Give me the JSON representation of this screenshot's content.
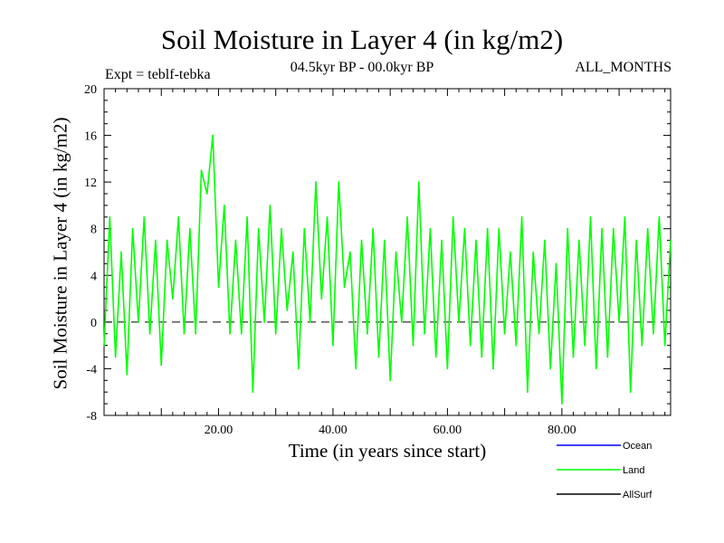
{
  "chart_data": {
    "type": "line",
    "title": "Soil Moisture in Layer 4 (in kg/m2)",
    "subtitle": "04.5kyr BP - 00.0kyr BP",
    "experiment": "Expt = teblf-tebka",
    "months": "ALL_MONTHS",
    "xlabel": "Time (in years since start)",
    "ylabel": "Soil Moisture in Layer 4 (in kg/m2)",
    "xlim": [
      0,
      99
    ],
    "ylim": [
      -8,
      20
    ],
    "x_ticks": [
      "20.00",
      "40.00",
      "60.00",
      "80.00"
    ],
    "x_tick_values": [
      20,
      40,
      60,
      80
    ],
    "y_ticks": [
      "20",
      "16",
      "12",
      "8",
      "4",
      "0",
      "-4",
      "-8"
    ],
    "y_tick_values": [
      20,
      16,
      12,
      8,
      4,
      0,
      -4,
      -8
    ],
    "zero_line": 0,
    "legend": [
      {
        "name": "Ocean",
        "color": "#0000ff"
      },
      {
        "name": "Land",
        "color": "#00ff00"
      },
      {
        "name": "AllSurf",
        "color": "#000000"
      }
    ],
    "series": [
      {
        "name": "Land",
        "color": "#00ff00",
        "x": [
          0,
          1,
          2,
          3,
          4,
          5,
          6,
          7,
          8,
          9,
          10,
          11,
          12,
          13,
          14,
          15,
          16,
          17,
          18,
          19,
          20,
          21,
          22,
          23,
          24,
          25,
          26,
          27,
          28,
          29,
          30,
          31,
          32,
          33,
          34,
          35,
          36,
          37,
          38,
          39,
          40,
          41,
          42,
          43,
          44,
          45,
          46,
          47,
          48,
          49,
          50,
          51,
          52,
          53,
          54,
          55,
          56,
          57,
          58,
          59,
          60,
          61,
          62,
          63,
          64,
          65,
          66,
          67,
          68,
          69,
          70,
          71,
          72,
          73,
          74,
          75,
          76,
          77,
          78,
          79,
          80,
          81,
          82,
          83,
          84,
          85,
          86,
          87,
          88,
          89,
          90,
          91,
          92,
          93,
          94,
          95,
          96,
          97,
          98,
          99
        ],
        "values": [
          -2,
          9,
          -3,
          6,
          -4.5,
          8,
          0,
          9,
          -1,
          7,
          -3.7,
          7,
          2,
          9,
          -1,
          8,
          -1,
          13,
          11,
          16,
          3,
          10,
          -1,
          7,
          -1,
          9,
          -6,
          8,
          0,
          10,
          -1,
          8,
          1,
          6,
          -4,
          8,
          0,
          12,
          2,
          9,
          -2,
          12,
          3,
          6,
          -4,
          7,
          -1,
          8,
          -3,
          7,
          -5,
          6,
          0,
          9,
          -2,
          12,
          -1,
          8,
          -3,
          7,
          -4,
          9,
          0,
          8,
          -2,
          7,
          -3,
          8,
          -4,
          8,
          -1,
          6,
          -2,
          9,
          -6,
          6,
          -1,
          7,
          -4,
          5,
          -7,
          8,
          -3,
          7,
          -2,
          9,
          -4,
          8,
          -3,
          8,
          0,
          9,
          -6,
          7,
          -2,
          8,
          -1,
          9,
          -2,
          7
        ]
      }
    ]
  }
}
